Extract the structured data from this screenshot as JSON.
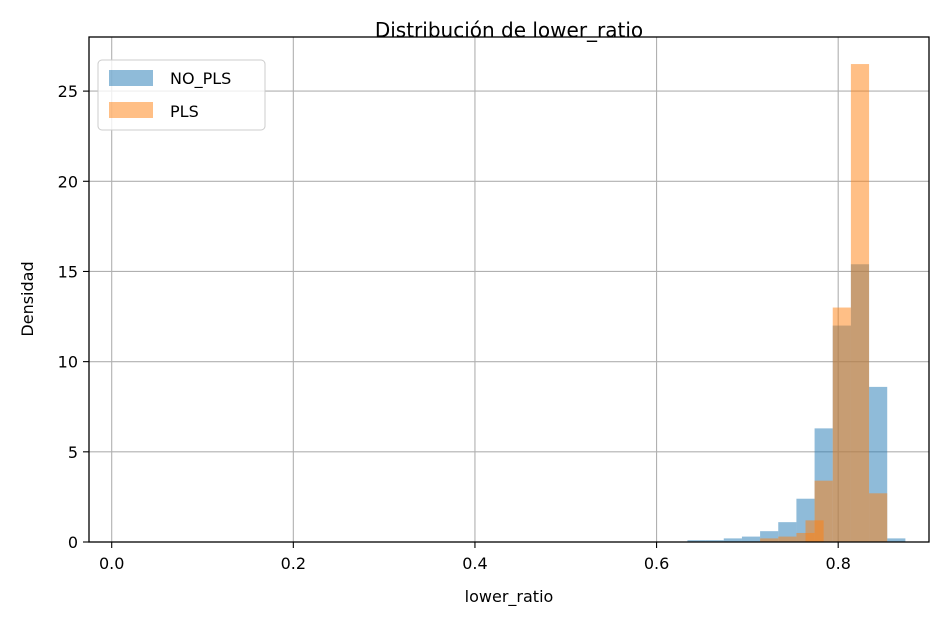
{
  "chart_data": {
    "type": "bar",
    "subtype": "histogram",
    "title": "Distribución de lower_ratio",
    "xlabel": "lower_ratio",
    "ylabel": "Densidad",
    "xlim": [
      -0.025,
      0.9
    ],
    "ylim": [
      0,
      28
    ],
    "xticks": [
      0.0,
      0.2,
      0.4,
      0.6,
      0.8
    ],
    "xtick_labels": [
      "0.0",
      "0.2",
      "0.4",
      "0.6",
      "0.8"
    ],
    "yticks": [
      0,
      5,
      10,
      15,
      20,
      25
    ],
    "ytick_labels": [
      "0",
      "5",
      "10",
      "15",
      "20",
      "25"
    ],
    "grid": true,
    "legend_position": "top-left",
    "series": [
      {
        "name": "NO_PLS",
        "color": "#1f77b4",
        "opacity": 0.5,
        "bin_width": 0.02,
        "bins": [
          {
            "x0": 0.634,
            "value": 0.1
          },
          {
            "x0": 0.654,
            "value": 0.1
          },
          {
            "x0": 0.674,
            "value": 0.2
          },
          {
            "x0": 0.694,
            "value": 0.3
          },
          {
            "x0": 0.714,
            "value": 0.6
          },
          {
            "x0": 0.734,
            "value": 1.1
          },
          {
            "x0": 0.754,
            "value": 2.4
          },
          {
            "x0": 0.774,
            "value": 6.3
          },
          {
            "x0": 0.794,
            "value": 12.0
          },
          {
            "x0": 0.814,
            "value": 15.4
          },
          {
            "x0": 0.834,
            "value": 8.6
          },
          {
            "x0": 0.854,
            "value": 0.2
          }
        ]
      },
      {
        "name": "PLS",
        "color": "#ff7f0e",
        "opacity": 0.5,
        "bin_width": 0.02,
        "bins": [
          {
            "x0": 0.714,
            "value": 0.2
          },
          {
            "x0": 0.734,
            "value": 0.3
          },
          {
            "x0": 0.754,
            "value": 0.5
          },
          {
            "x0": 0.764,
            "value": 1.2
          },
          {
            "x0": 0.774,
            "value": 3.4
          },
          {
            "x0": 0.794,
            "value": 13.0
          },
          {
            "x0": 0.814,
            "value": 26.5
          },
          {
            "x0": 0.834,
            "value": 2.7
          }
        ]
      }
    ]
  }
}
